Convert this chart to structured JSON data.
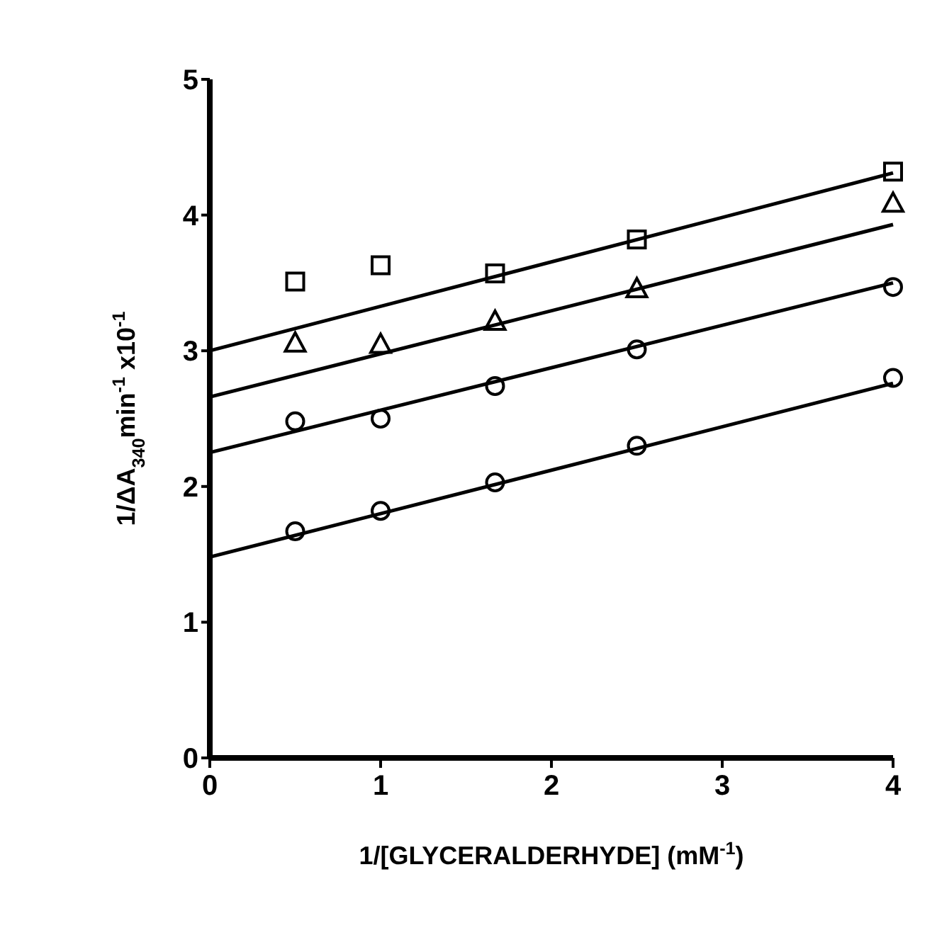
{
  "chart_data": {
    "type": "scatter",
    "xlabel": "1/[GLYCERALDERHYDE] (mM$^{-1}$)",
    "ylabel": "1/ΔA$_{340}$min$^{-1}$ x10$^{-1}$",
    "xlim": [
      0,
      4
    ],
    "ylim": [
      0,
      5
    ],
    "xticks": [
      0,
      1,
      2,
      3,
      4
    ],
    "yticks": [
      0,
      1,
      2,
      3,
      4,
      5
    ],
    "grid": false,
    "series": [
      {
        "marker": "square",
        "color": "#000000",
        "x": [
          0.5,
          1,
          1.67,
          2.5,
          4
        ],
        "values": [
          3.51,
          3.63,
          3.57,
          3.82,
          4.32
        ]
      },
      {
        "marker": "triangle",
        "color": "#000000",
        "x": [
          0.5,
          1,
          1.67,
          2.5,
          4
        ],
        "values": [
          3.06,
          3.05,
          3.22,
          3.46,
          4.09
        ]
      },
      {
        "marker": "circle",
        "color": "#000000",
        "x": [
          0.5,
          1,
          1.67,
          2.5,
          4
        ],
        "values": [
          2.48,
          2.5,
          2.74,
          3.01,
          3.47
        ]
      },
      {
        "marker": "circle",
        "color": "#000000",
        "x": [
          0.5,
          1,
          1.67,
          2.5,
          4
        ],
        "values": [
          1.67,
          1.82,
          2.03,
          2.3,
          2.8
        ]
      },
      {
        "type": "line",
        "marker": "none",
        "line_style": "solid",
        "color": "#000000",
        "x": [
          0,
          4
        ],
        "values": [
          3.0,
          4.31
        ]
      },
      {
        "type": "line",
        "marker": "none",
        "line_style": "solid",
        "color": "#000000",
        "x": [
          0,
          4
        ],
        "values": [
          2.66,
          3.93
        ]
      },
      {
        "type": "line",
        "marker": "none",
        "line_style": "solid",
        "color": "#000000",
        "x": [
          0,
          4
        ],
        "values": [
          2.25,
          3.5
        ]
      },
      {
        "type": "line",
        "marker": "none",
        "line_style": "solid",
        "color": "#000000",
        "x": [
          0,
          4
        ],
        "values": [
          1.48,
          2.76
        ]
      }
    ]
  }
}
